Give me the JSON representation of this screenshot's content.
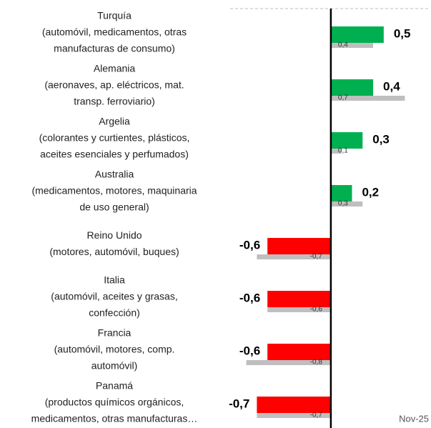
{
  "chart_data": {
    "type": "barh",
    "categories": [
      [
        "Turquía",
        "(automóvil, medicamentos, otras",
        "manufacturas de consumo)"
      ],
      [
        "Alemania",
        "(aeronaves, ap. eléctricos, mat.",
        "transp. ferroviario)"
      ],
      [
        "Argelia",
        "(colorantes y curtientes, plásticos,",
        "aceites esenciales y perfumados)"
      ],
      [
        "Australia",
        "(medicamentos, motores, maquinaria",
        "de uso general)"
      ],
      [
        "Reino Unido",
        "(motores, automóvil, buques)"
      ],
      [
        "Italia",
        "(automóvil, aceites y grasas,",
        "confección)"
      ],
      [
        "Francia",
        "(automóvil, motores, comp.",
        "automóvil)"
      ],
      [
        "Panamá",
        "(productos químicos orgánicos,",
        "medicamentos, otras manufacturas…"
      ]
    ],
    "series": [
      {
        "values": [
          0.5,
          0.4,
          0.3,
          0.2,
          -0.6,
          -0.6,
          -0.6,
          -0.7
        ],
        "value_labels": [
          "0,5",
          "0,4",
          "0,3",
          "0,2",
          "-0,6",
          "-0,6",
          "-0,6",
          "-0,7"
        ],
        "positive_color": "#00b050",
        "negative_color": "#ff0000"
      },
      {
        "values": [
          0.4,
          0.7,
          0.1,
          0.3,
          -0.7,
          -0.6,
          -0.8,
          -0.7
        ],
        "value_labels": [
          "0,4",
          "0,7",
          "0,1",
          "0,3",
          "-0,7",
          "-0,6",
          "-0,8",
          "-0,7"
        ],
        "color": "#bfbfbf"
      }
    ],
    "xlim": [
      -1,
      0.9
    ],
    "annotation": "Nov-25"
  }
}
